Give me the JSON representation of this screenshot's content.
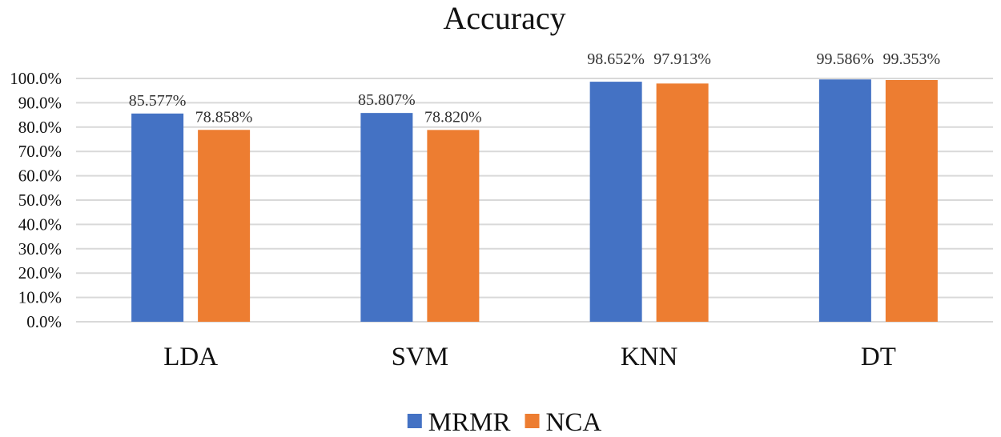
{
  "chart_data": {
    "type": "bar",
    "title": "Accuracy",
    "xlabel": "",
    "ylabel": "",
    "categories": [
      "LDA",
      "SVM",
      "KNN",
      "DT"
    ],
    "series": [
      {
        "name": "MRMR",
        "color": "#4472c4",
        "values": [
          85.577,
          85.807,
          98.652,
          99.586
        ],
        "value_labels": [
          "85.577%",
          "85.807%",
          "98.652%",
          "99.586%"
        ]
      },
      {
        "name": "NCA",
        "color": "#ed7d31",
        "values": [
          78.858,
          78.82,
          97.913,
          99.353
        ],
        "value_labels": [
          "78.858%",
          "78.820%",
          "97.913%",
          "99.353%"
        ]
      }
    ],
    "ylim": [
      0,
      100
    ],
    "yticks": [
      0,
      10,
      20,
      30,
      40,
      50,
      60,
      70,
      80,
      90,
      100
    ],
    "ytick_labels": [
      "0.0%",
      "10.0%",
      "20.0%",
      "30.0%",
      "40.0%",
      "50.0%",
      "60.0%",
      "70.0%",
      "80.0%",
      "90.0%",
      "100.0%"
    ],
    "grid": true,
    "legend_position": "bottom"
  }
}
